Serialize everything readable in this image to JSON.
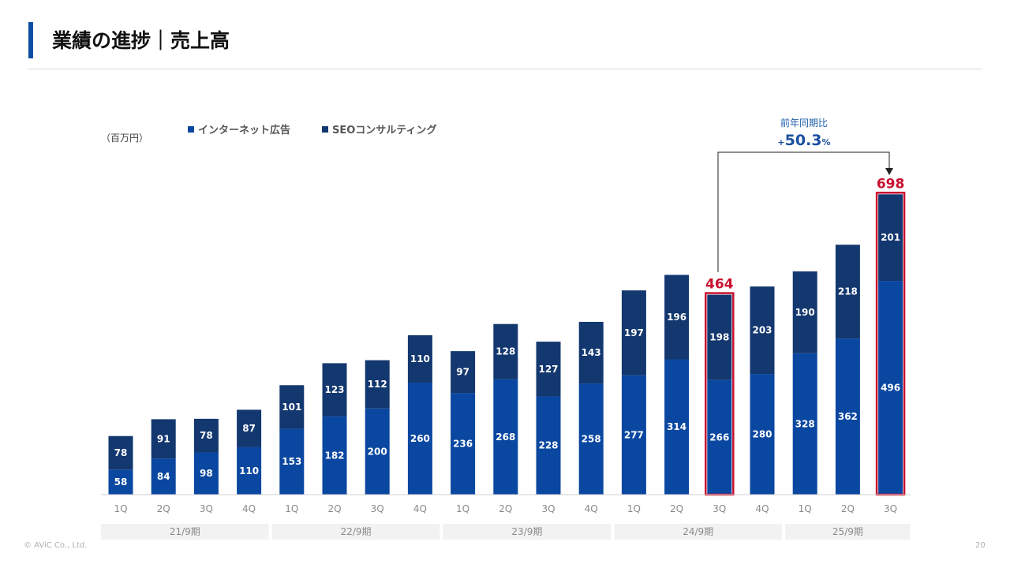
{
  "header": {
    "title": "業績の進捗｜売上高"
  },
  "footer": {
    "copyright": "© AViC Co., Ltd.",
    "page_number": "20"
  },
  "chart_data": {
    "type": "bar",
    "stacked": true,
    "unit_label": "（百万円）",
    "categories": [
      "1Q",
      "2Q",
      "3Q",
      "4Q",
      "1Q",
      "2Q",
      "3Q",
      "4Q",
      "1Q",
      "2Q",
      "3Q",
      "4Q",
      "1Q",
      "2Q",
      "3Q",
      "4Q",
      "1Q",
      "2Q",
      "3Q"
    ],
    "periods": [
      {
        "label": "21/9期",
        "quarters": 4
      },
      {
        "label": "22/9期",
        "quarters": 4
      },
      {
        "label": "23/9期",
        "quarters": 4
      },
      {
        "label": "24/9期",
        "quarters": 4
      },
      {
        "label": "25/9期",
        "quarters": 3
      }
    ],
    "series": [
      {
        "name": "インターネット広告",
        "color": "#0a47a0",
        "values": [
          58,
          84,
          98,
          110,
          153,
          182,
          200,
          260,
          236,
          268,
          228,
          258,
          277,
          314,
          266,
          280,
          328,
          362,
          496
        ]
      },
      {
        "name": "SEOコンサルティング",
        "color": "#13376f",
        "values": [
          78,
          91,
          78,
          87,
          101,
          123,
          112,
          110,
          97,
          128,
          127,
          143,
          197,
          196,
          198,
          203,
          190,
          218,
          201
        ]
      }
    ],
    "ylim": [
      0,
      720
    ],
    "legend_position": "top",
    "highlights": [
      {
        "index": 14,
        "total": "464"
      },
      {
        "index": 18,
        "total": "698"
      }
    ],
    "annotation": {
      "caption": "前年同期比",
      "value_sign": "+",
      "value_number": "50.3",
      "value_unit": "%"
    },
    "colors": {
      "highlight": "#c8102e",
      "axis": "#d0d0d0",
      "period_band": "#f2f2f2"
    }
  }
}
